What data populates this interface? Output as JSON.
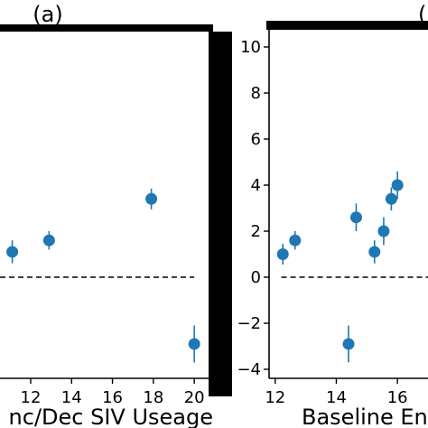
{
  "panel_labels": {
    "left": "(a)",
    "right": "("
  },
  "chart_data": [
    {
      "type": "scatter",
      "panel": "(a)",
      "xlabel": "nc/Dec SIV Useage",
      "ylabel": "",
      "xlim": [
        10.5,
        20.7
      ],
      "ylim": [
        -4.5,
        11
      ],
      "xticks": [
        12,
        14,
        16,
        18,
        20
      ],
      "xtick_labels": [
        "12",
        "14",
        "16",
        "18",
        "20"
      ],
      "reference_line": {
        "y": 0,
        "style": "dashed",
        "from_x": 10.5,
        "to_x": 20
      },
      "color": "#1f77b4",
      "points": [
        {
          "x": 11.1,
          "y": 1.1,
          "err": 0.5
        },
        {
          "x": 12.9,
          "y": 1.6,
          "err": 0.4
        },
        {
          "x": 17.9,
          "y": 3.4,
          "err": 0.45
        },
        {
          "x": 20.0,
          "y": -2.9,
          "err": 0.8
        }
      ]
    },
    {
      "type": "scatter",
      "panel": "(",
      "xlabel": "Baseline En",
      "ylabel": "",
      "xlim": [
        11.8,
        17.0
      ],
      "ylim": [
        -4.5,
        11
      ],
      "xticks": [
        12,
        14,
        16
      ],
      "xtick_labels": [
        "12",
        "14",
        "16"
      ],
      "yticks": [
        -4,
        -2,
        0,
        2,
        4,
        6,
        8,
        10
      ],
      "ytick_labels": [
        "−4",
        "−2",
        "0",
        "2",
        "4",
        "6",
        "8",
        "10"
      ],
      "reference_line": {
        "y": 0,
        "style": "dashed",
        "from_x": 12.2,
        "to_x": 17.0
      },
      "color": "#1f77b4",
      "points": [
        {
          "x": 12.25,
          "y": 1.0,
          "err": 0.45
        },
        {
          "x": 12.65,
          "y": 1.6,
          "err": 0.4
        },
        {
          "x": 14.4,
          "y": -2.9,
          "err": 0.8
        },
        {
          "x": 14.65,
          "y": 2.6,
          "err": 0.6
        },
        {
          "x": 15.25,
          "y": 1.1,
          "err": 0.5
        },
        {
          "x": 15.55,
          "y": 2.0,
          "err": 0.6
        },
        {
          "x": 15.8,
          "y": 3.4,
          "err": 0.5
        },
        {
          "x": 16.0,
          "y": 4.0,
          "err": 0.6
        }
      ]
    }
  ]
}
